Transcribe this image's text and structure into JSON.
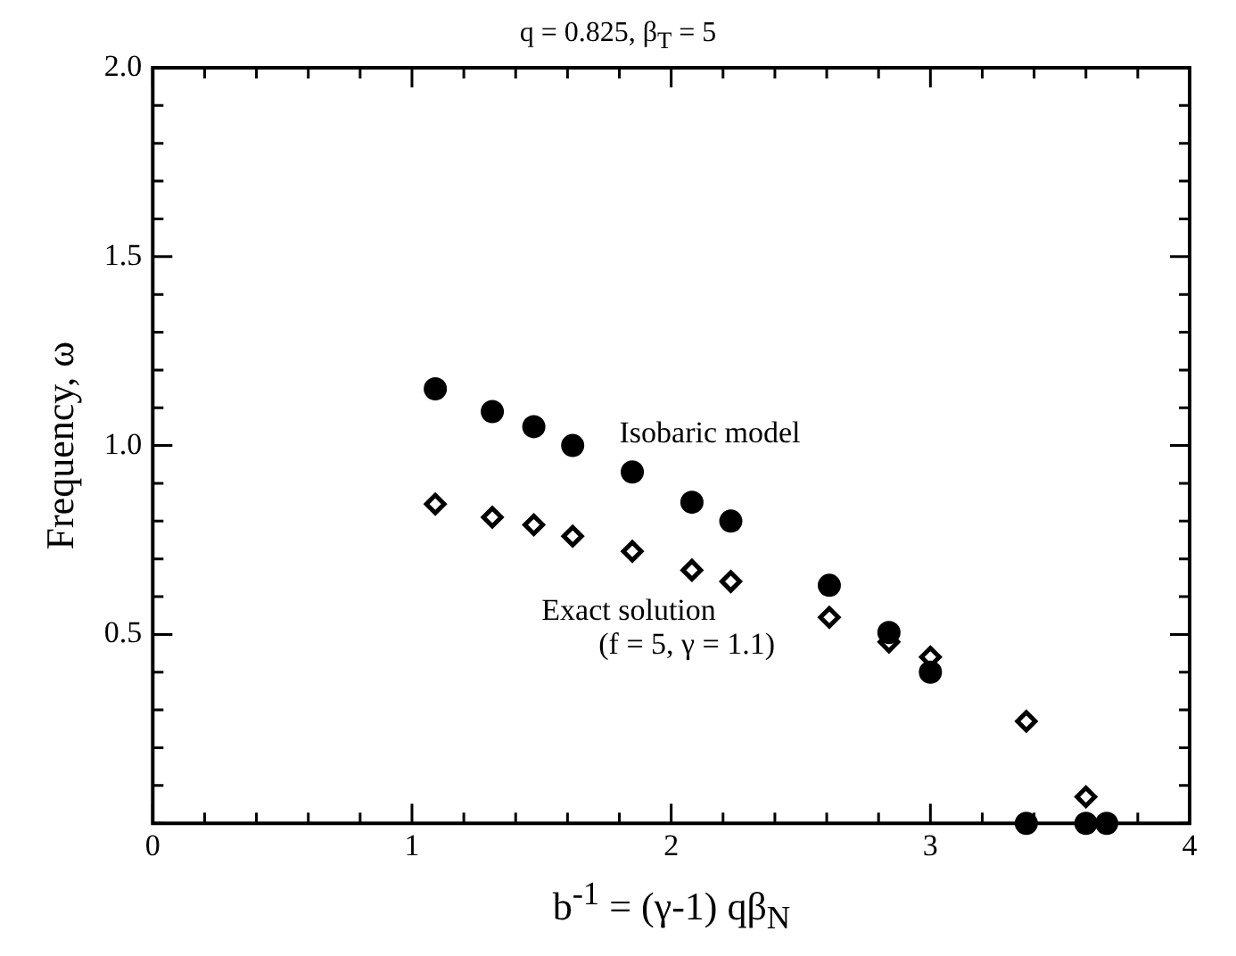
{
  "chart_data": {
    "type": "scatter",
    "title": "q = 0.825, β$_{T}$ = 5",
    "xlabel": "b$^{-1}$ = (γ-1) qβ$_{N}$",
    "ylabel": "Frequency, ω",
    "annotations": [
      "(f = 5, γ = 1.1)"
    ],
    "xlim": [
      0,
      4
    ],
    "ylim": [
      0,
      2.0
    ],
    "xticks": [
      0,
      {
        "value": 0.2,
        "label": null
      },
      {
        "value": 0.4,
        "label": null
      },
      {
        "value": 0.6,
        "label": null
      },
      {
        "value": 0.8,
        "label": null
      },
      1,
      {
        "value": 1.2,
        "label": null
      },
      {
        "value": 1.4,
        "label": null
      },
      {
        "value": 1.6,
        "label": null
      },
      {
        "value": 1.8,
        "label": null
      },
      2,
      {
        "value": 2.2,
        "label": null
      },
      {
        "value": 2.4,
        "label": null
      },
      {
        "value": 2.6,
        "label": null
      },
      {
        "value": 2.8,
        "label": null
      },
      3,
      {
        "value": 3.2,
        "label": null
      },
      {
        "value": 3.4,
        "label": null
      },
      {
        "value": 3.6,
        "label": null
      },
      {
        "value": 3.8,
        "label": null
      },
      4
    ],
    "yticks": [
      {
        "value": 0,
        "label": null
      },
      {
        "value": 0.1,
        "label": null
      },
      {
        "value": 0.2,
        "label": null
      },
      {
        "value": 0.3,
        "label": null
      },
      {
        "value": 0.4,
        "label": null
      },
      0.5,
      {
        "value": 0.6,
        "label": null
      },
      {
        "value": 0.7,
        "label": null
      },
      {
        "value": 0.8,
        "label": null
      },
      {
        "value": 0.9,
        "label": null
      },
      {
        "value": 1.0,
        "label": "1.0"
      },
      {
        "value": 1.1,
        "label": null
      },
      {
        "value": 1.2,
        "label": null
      },
      {
        "value": 1.3,
        "label": null
      },
      {
        "value": 1.4,
        "label": null
      },
      1.5,
      {
        "value": 1.6,
        "label": null
      },
      {
        "value": 1.7,
        "label": null
      },
      {
        "value": 1.8,
        "label": null
      },
      {
        "value": 1.9,
        "label": null
      },
      {
        "value": 2.0,
        "label": "2.0"
      }
    ],
    "grid": false,
    "legend": false,
    "series": [
      {
        "name": "Isobaric model",
        "color": "#000000",
        "marker": "circle",
        "x": [
          1.09,
          1.31,
          1.47,
          1.62,
          1.85,
          2.08,
          2.23,
          2.61,
          2.84,
          3.0,
          3.37,
          3.6,
          3.68
        ],
        "values": [
          1.15,
          1.09,
          1.05,
          1.0,
          0.93,
          0.85,
          0.8,
          0.63,
          0.505,
          0.4,
          0,
          0,
          0
        ]
      },
      {
        "name": "Exact solution",
        "color": "#000000",
        "marker": "diamond",
        "x": [
          1.09,
          1.31,
          1.47,
          1.62,
          1.85,
          2.08,
          2.23,
          2.61,
          2.84,
          3.0,
          3.37,
          3.6
        ],
        "values": [
          0.845,
          0.81,
          0.79,
          0.76,
          0.72,
          0.67,
          0.64,
          0.545,
          0.48,
          0.44,
          0.27,
          0.07
        ]
      }
    ]
  }
}
